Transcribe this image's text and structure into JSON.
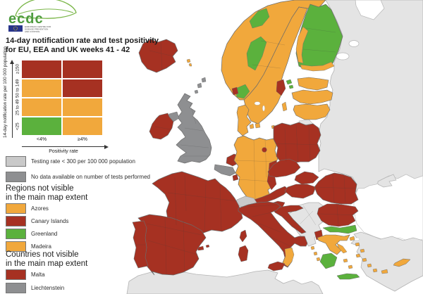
{
  "logo": {
    "text": "ecdc",
    "subtext_line1": "EUROPEAN CENTRE FOR",
    "subtext_line2": "DISEASE PREVENTION",
    "subtext_line3": "AND CONTROL"
  },
  "title": {
    "line1": "14-day notification rate and test positivity",
    "line2": "for EU, EEA and UK weeks 41 - 42"
  },
  "matrix": {
    "y_axis_label": "14-day notification rate per 100 000 population",
    "x_axis_label": "Positivity rate",
    "row_labels": [
      "≥150",
      "50 to 149",
      "25 to 49",
      "<25"
    ],
    "col_labels": [
      "<4%",
      "≥4%"
    ],
    "cells": [
      [
        "red",
        "red"
      ],
      [
        "orange",
        "red"
      ],
      [
        "orange",
        "orange"
      ],
      [
        "green",
        "orange"
      ]
    ]
  },
  "extra_classes": [
    {
      "status": "lightgray",
      "label": "Testing rate < 300 per 100 000 population"
    },
    {
      "status": "darkgray",
      "label": "No data available on number of tests performed"
    }
  ],
  "regions_heading": {
    "line1": "Regions not visible",
    "line2": "in the main map extent"
  },
  "regions_not_visible": [
    {
      "status": "orange",
      "label": "Azores"
    },
    {
      "status": "red",
      "label": "Canary Islands"
    },
    {
      "status": "green",
      "label": "Greenland"
    },
    {
      "status": "orange",
      "label": "Madeira"
    }
  ],
  "countries_heading": {
    "line1": "Countries not visible",
    "line2": "in the main map extent"
  },
  "countries_not_visible": [
    {
      "status": "red",
      "label": "Malta"
    },
    {
      "status": "darkgray",
      "label": "Liechtenstein"
    }
  ],
  "colors": {
    "red": "#a63122",
    "orange": "#f1a83c",
    "green": "#5bb13d",
    "lightgray": "#c9c9c9",
    "darkgray": "#8e8f91",
    "noneu": "#e4e4e4",
    "sea": "#ffffff",
    "logo_green": "#4e9c3f",
    "flag_blue": "#27348b"
  },
  "map": {
    "regions": {
      "iceland": "red",
      "faroe-islands": "orange",
      "norway": "orange",
      "norway-green-central": "green",
      "norway-green-north": "green",
      "norway-south-green": "green",
      "norway-south-red": "red",
      "sweden": "orange",
      "sweden-stockholm": "red",
      "gotland": "orange",
      "finland": "green",
      "finland-west": "orange",
      "finland-south": "orange",
      "estonia": "orange",
      "estonia-islands": "green",
      "latvia": "orange",
      "lithuania": "orange",
      "denmark": "orange",
      "denmark-islands": "orange",
      "bornholm": "orange",
      "great-britain": "darkgray",
      "shetland-orkney": "darkgray",
      "northern-ireland": "darkgray",
      "ireland": "red",
      "netherlands": "red",
      "belgium": "darkgray",
      "luxembourg": "red",
      "germany": "orange",
      "berlin": "red",
      "germany-east-red": "red",
      "poland": "red",
      "czechia": "red",
      "slovakia": "red",
      "hungary": "red",
      "austria": "red",
      "switzerland": "lightgray",
      "france": "red",
      "corsica": "red",
      "balearics": "red",
      "spain": "red",
      "portugal": "red",
      "italy": "red",
      "calabria": "orange",
      "sicily": "red",
      "sardinia": "red",
      "slovenia": "red",
      "croatia": "red",
      "romania": "red",
      "bulgaria": "red",
      "greece-main": "orange",
      "greece-north": "green",
      "greece-northwest": "red",
      "peloponnese": "green",
      "crete": "green",
      "euboea": "orange",
      "ionian-islands": "orange",
      "aegean-islands": "orange",
      "cyprus": "orange",
      "russia-belarus-ukraine": "noneu",
      "kaliningrad": "noneu",
      "crimea": "noneu",
      "turkey": "noneu",
      "north-africa": "noneu",
      "western-balkans": "noneu",
      "white-sea": "sea",
      "lake-ladoga": "sea",
      "lake-onega": "sea",
      "black-sea": "sea",
      "sea-of-marmara": "sea",
      "lake-vanern": "sea",
      "lake-vattern": "sea"
    }
  }
}
